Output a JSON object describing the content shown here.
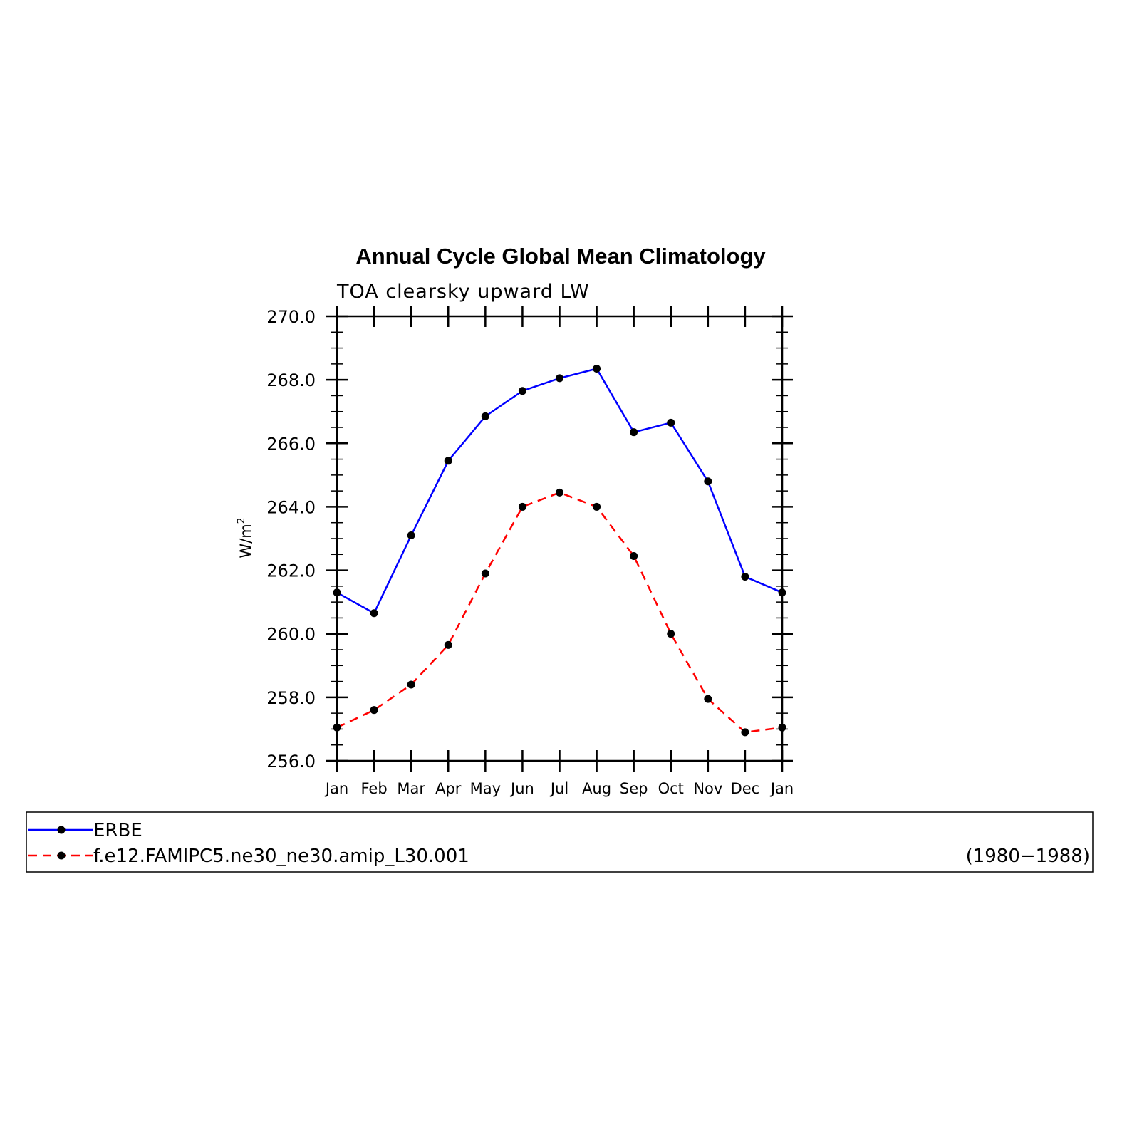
{
  "chart_data": {
    "type": "line",
    "title": "Annual Cycle Global Mean Climatology",
    "subtitle": "TOA clearsky upward LW",
    "ylabel": "W/m",
    "ylabel_sup": "2",
    "categories": [
      "Jan",
      "Feb",
      "Mar",
      "Apr",
      "May",
      "Jun",
      "Jul",
      "Aug",
      "Sep",
      "Oct",
      "Nov",
      "Dec",
      "Jan"
    ],
    "ylim": [
      256.0,
      270.0
    ],
    "yticks": [
      "256.0",
      "258.0",
      "260.0",
      "262.0",
      "264.0",
      "266.0",
      "268.0",
      "270.0"
    ],
    "series": [
      {
        "name": "ERBE",
        "color": "#0000ff",
        "dash": "solid",
        "values": [
          261.3,
          260.65,
          263.1,
          265.45,
          266.85,
          267.65,
          268.05,
          268.35,
          266.35,
          266.65,
          264.8,
          261.8,
          261.3
        ]
      },
      {
        "name": "f.e12.FAMIPC5.ne30_ne30.amip_L30.001",
        "color": "#ff0000",
        "dash": "dashed",
        "values": [
          257.05,
          257.6,
          258.4,
          259.65,
          261.9,
          264.0,
          264.45,
          264.0,
          262.45,
          260.0,
          257.95,
          256.9,
          257.05
        ]
      }
    ],
    "legend_note": "(1980−1988)",
    "legend_position": "bottom",
    "grid": false
  }
}
